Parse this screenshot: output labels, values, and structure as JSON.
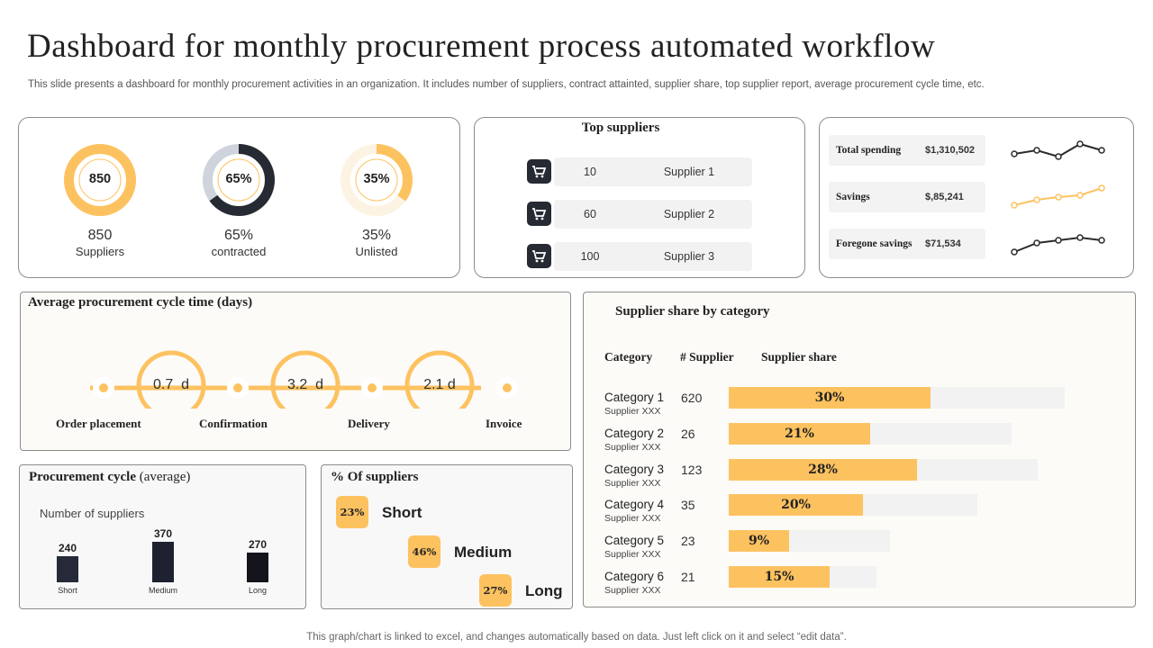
{
  "title": "Dashboard for monthly procurement process automated workflow",
  "subtitle": "This slide presents a dashboard for monthly procurement activities in an organization. It includes number of suppliers, contract attainted, supplier share, top supplier report, average procurement cycle time, etc.",
  "stats": [
    {
      "center": "850",
      "number": "850",
      "label": "Suppliers",
      "fill": 1.0,
      "color": "#fdc260"
    },
    {
      "center": "65%",
      "number": "65%",
      "label": "contracted",
      "fill": 0.65,
      "color": "#262a33"
    },
    {
      "center": "35%",
      "number": "35%",
      "label": "Unlisted",
      "fill": 0.35,
      "color": "#fdc260"
    }
  ],
  "top_suppliers": {
    "title": "Top suppliers",
    "rows": [
      {
        "value": "10",
        "name": "Supplier 1"
      },
      {
        "value": "60",
        "name": "Supplier 2"
      },
      {
        "value": "100",
        "name": "Supplier 3"
      }
    ]
  },
  "spending": [
    {
      "label": "Total spending",
      "value": "$1,310,502",
      "color": "#2b2b2b"
    },
    {
      "label": "Savings",
      "value": "$,85,241",
      "color": "#fdc260"
    },
    {
      "label": "Foregone savings",
      "value": "$71,534",
      "color": "#2b2b2b"
    }
  ],
  "cycle_time": {
    "title": "Average procurement cycle time (days)",
    "durations": [
      "0.7  d",
      "3.2  d",
      "2.1 d"
    ],
    "steps": [
      "Order placement",
      "Confirmation",
      "Delivery",
      "Invoice"
    ]
  },
  "category_share": {
    "title": "Supplier share by category",
    "headers": [
      "Category",
      "# Supplier",
      "Supplier share"
    ],
    "rows": [
      {
        "name": "Category 1",
        "sub": "Supplier XXX",
        "count": "620",
        "share": "30%",
        "fill": 0.3
      },
      {
        "name": "Category 2",
        "sub": "Supplier XXX",
        "count": "26",
        "share": "21%",
        "fill": 0.21
      },
      {
        "name": "Category 3",
        "sub": "Supplier XXX",
        "count": "123",
        "share": "28%",
        "fill": 0.28
      },
      {
        "name": "Category 4",
        "sub": "Supplier XXX",
        "count": "35",
        "share": "20%",
        "fill": 0.2
      },
      {
        "name": "Category 5",
        "sub": "Supplier XXX",
        "count": "23",
        "share": "9%",
        "fill": 0.09
      },
      {
        "name": "Category 6",
        "sub": "Supplier XXX",
        "count": "21",
        "share": "15%",
        "fill": 0.15
      }
    ]
  },
  "procurement_cycle": {
    "title_bold": "Procurement cycle",
    "title_rest": " (average)",
    "subtitle": "Number of suppliers",
    "bars": [
      {
        "label": "Short",
        "value": "240",
        "num": 240
      },
      {
        "label": "Medium",
        "value": "370",
        "num": 370
      },
      {
        "label": "Long",
        "value": "270",
        "num": 270
      }
    ]
  },
  "pct_suppliers": {
    "title": "% Of suppliers",
    "rows": [
      {
        "pct": "23%",
        "label": "Short"
      },
      {
        "pct": "46%",
        "label": "Medium"
      },
      {
        "pct": "27%",
        "label": "Long"
      }
    ]
  },
  "footer": "This graph/chart is linked to excel,  and changes automatically based on data. Just left click on it and select “edit data”."
}
